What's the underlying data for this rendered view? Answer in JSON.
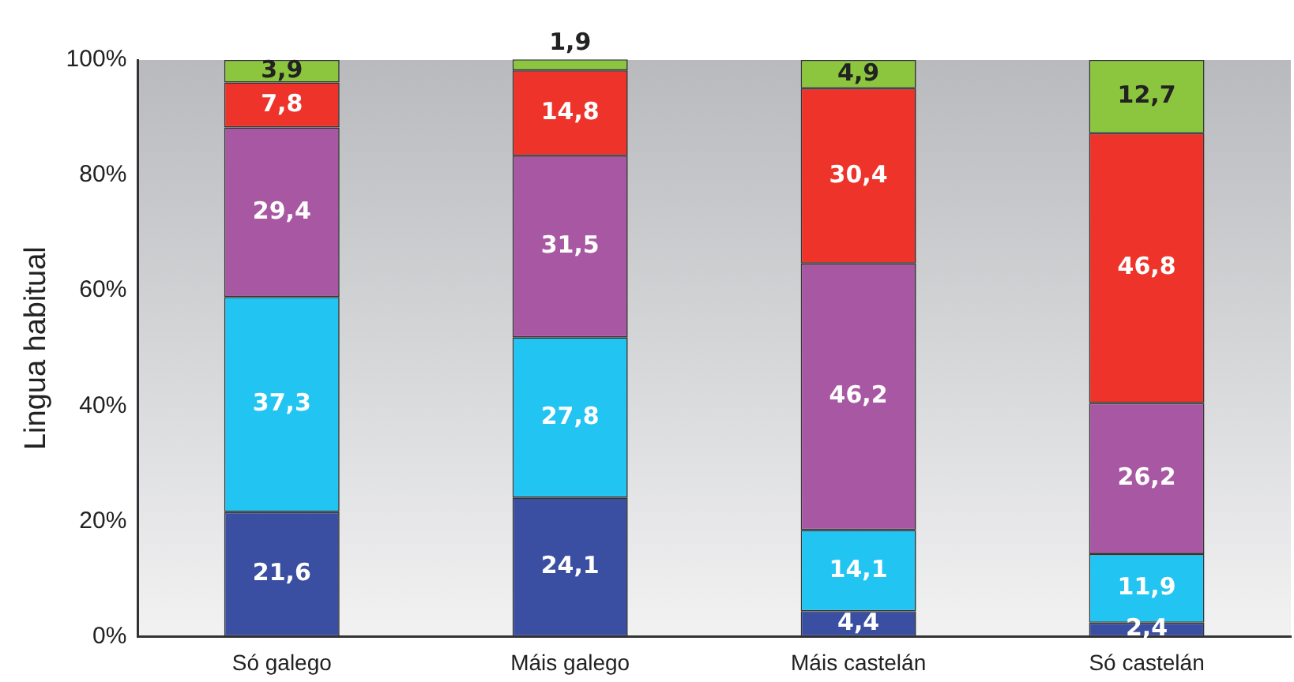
{
  "chart_data": {
    "type": "bar",
    "stacked": true,
    "ylabel": "Lingua habitual",
    "categories": [
      "Só galego",
      "Máis galego",
      "Máis castelán",
      "Só castelán"
    ],
    "series": [
      {
        "color": "#3a4fa2",
        "values": [
          21.6,
          24.1,
          4.4,
          2.4
        ],
        "value_labels": [
          "21,6",
          "24,1",
          "4,4",
          "2,4"
        ]
      },
      {
        "color": "#22c4f2",
        "values": [
          37.3,
          27.8,
          14.1,
          11.9
        ],
        "value_labels": [
          "37,3",
          "27,8",
          "14,1",
          "11,9"
        ]
      },
      {
        "color": "#a858a2",
        "values": [
          29.4,
          31.5,
          46.2,
          26.2
        ],
        "value_labels": [
          "29,4",
          "31,5",
          "46,2",
          "26,2"
        ]
      },
      {
        "color": "#ee342a",
        "values": [
          7.8,
          14.8,
          30.4,
          46.8
        ],
        "value_labels": [
          "7,8",
          "14,8",
          "30,4",
          "46,8"
        ]
      },
      {
        "color": "#8cc63f",
        "values": [
          3.9,
          1.9,
          4.9,
          12.7
        ],
        "value_labels": [
          "3,9",
          "1,9",
          "4,9",
          "12,7"
        ]
      }
    ],
    "ylim": [
      0,
      100
    ],
    "yticks": [
      {
        "value": 0,
        "label": "0%"
      },
      {
        "value": 20,
        "label": "20%"
      },
      {
        "value": 40,
        "label": "40%"
      },
      {
        "value": 60,
        "label": "60%"
      },
      {
        "value": 80,
        "label": "80%"
      },
      {
        "value": 100,
        "label": "100%"
      }
    ],
    "grid": false,
    "legend": false
  }
}
